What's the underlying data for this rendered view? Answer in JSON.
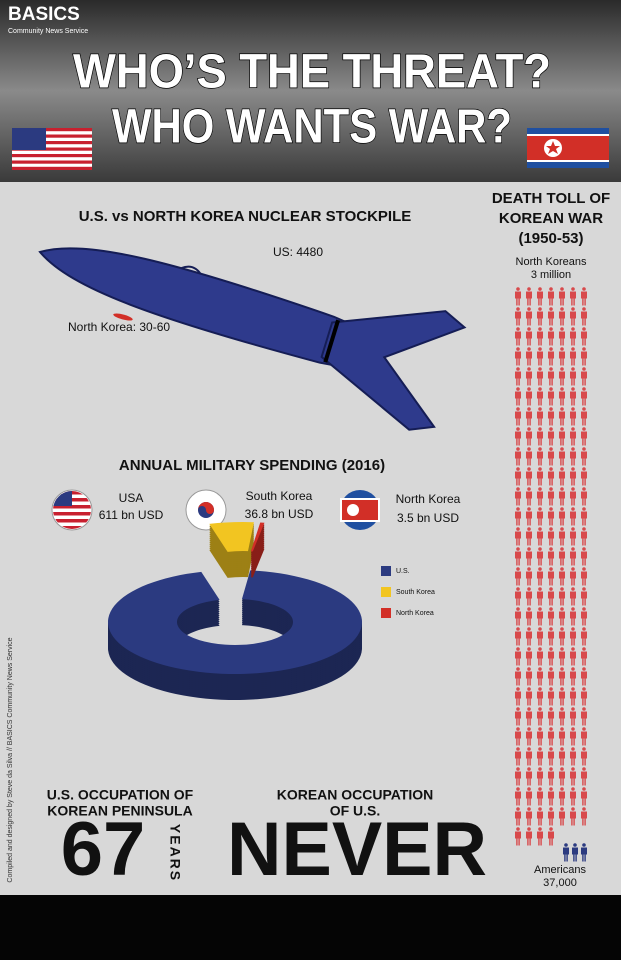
{
  "header": {
    "brand": "BASICS",
    "brand_sub": "Community News Service",
    "title_lines": [
      "WHO’S THE THREAT?",
      "WHO WANTS WAR?"
    ]
  },
  "stockpile": {
    "title": "U.S. vs NORTH KOREA NUCLEAR STOCKPILE",
    "us_label": "US: 4480",
    "nk_label": "North Korea: 30-60"
  },
  "death_toll": {
    "title_lines": [
      "DEATH TOLL OF",
      "KOREAN WAR",
      "(1950-53)"
    ],
    "north_koreans": [
      "North Koreans",
      "3 million"
    ],
    "americans": [
      "Americans",
      "37,000"
    ]
  },
  "spending": {
    "title": "ANNUAL MILITARY SPENDING (2016)",
    "countries": [
      "USA",
      "South Korea",
      "North Korea"
    ],
    "values": [
      611,
      36.8,
      3.5
    ],
    "value_labels": [
      "611 bn USD",
      "36.8 bn USD",
      "3.5 bn USD"
    ],
    "legend": [
      "U.S.",
      "South Korea",
      "North Korea"
    ],
    "colors": [
      "#2b3a80",
      "#f2c521",
      "#d22f27"
    ]
  },
  "occupation": {
    "us": {
      "title_lines": [
        "U.S. OCCUPATION OF",
        "KOREAN PENINSULA"
      ],
      "number": "67",
      "unit": "YEARS"
    },
    "korea": {
      "title_lines": [
        "KOREAN OCCUPATION",
        "OF U.S."
      ],
      "word": "NEVER"
    }
  },
  "credit": "Compiled and designed by Steve da Silva // BASICS Community News Service"
}
